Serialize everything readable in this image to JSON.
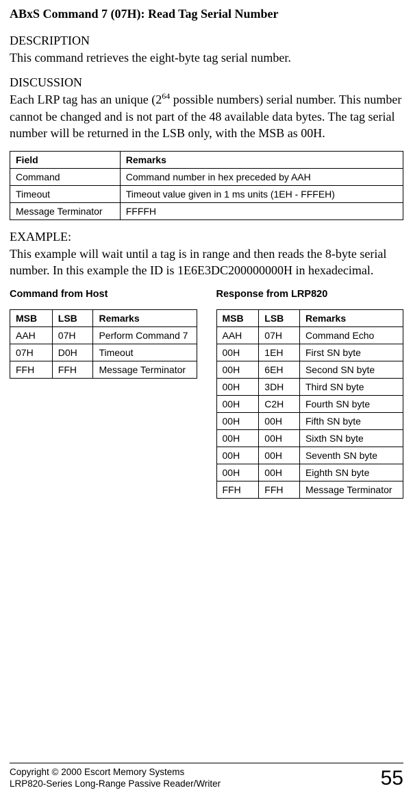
{
  "title": "ABxS Command 7 (07H): Read Tag Serial Number",
  "description": {
    "heading": "DESCRIPTION",
    "text": "This command retrieves the eight-byte tag serial number."
  },
  "discussion": {
    "heading": "DISCUSSION",
    "prefix": "Each LRP tag has an unique (2",
    "exp": "64",
    "suffix": " possible numbers) serial number. This number cannot be changed and is not part of the 48 available data bytes. The tag serial number will be returned in the LSB only, with the MSB as 00H."
  },
  "field_table": {
    "headers": {
      "field": "Field",
      "remarks": "Remarks"
    },
    "rows": [
      {
        "field": "Command",
        "remarks": "Command number in hex preceded by AAH"
      },
      {
        "field": "Timeout",
        "remarks": "Timeout value given in 1 ms units (1EH - FFFEH)"
      },
      {
        "field": "Message Terminator",
        "remarks": "FFFFH"
      }
    ]
  },
  "example": {
    "heading": "EXAMPLE:",
    "text": "This example will wait until a tag is in range and then reads the 8-byte serial number. In this example the ID is 1E6E3DC200000000H in hexadecimal."
  },
  "host_table": {
    "caption": "Command from Host",
    "headers": {
      "msb": "MSB",
      "lsb": "LSB",
      "remarks": "Remarks"
    },
    "rows": [
      {
        "msb": "AAH",
        "lsb": "07H",
        "remarks": "Perform Command 7"
      },
      {
        "msb": "07H",
        "lsb": "D0H",
        "remarks": "Timeout"
      },
      {
        "msb": "FFH",
        "lsb": "FFH",
        "remarks": "Message Terminator"
      }
    ]
  },
  "resp_table": {
    "caption": "Response from LRP820",
    "headers": {
      "msb": "MSB",
      "lsb": "LSB",
      "remarks": "Remarks"
    },
    "rows": [
      {
        "msb": "AAH",
        "lsb": "07H",
        "remarks": "Command Echo"
      },
      {
        "msb": "00H",
        "lsb": "1EH",
        "remarks": "First SN byte"
      },
      {
        "msb": "00H",
        "lsb": "6EH",
        "remarks": "Second SN byte"
      },
      {
        "msb": "00H",
        "lsb": "3DH",
        "remarks": "Third SN byte"
      },
      {
        "msb": "00H",
        "lsb": "C2H",
        "remarks": "Fourth SN byte"
      },
      {
        "msb": "00H",
        "lsb": "00H",
        "remarks": "Fifth SN byte"
      },
      {
        "msb": "00H",
        "lsb": "00H",
        "remarks": "Sixth SN byte"
      },
      {
        "msb": "00H",
        "lsb": "00H",
        "remarks": "Seventh SN byte"
      },
      {
        "msb": "00H",
        "lsb": "00H",
        "remarks": "Eighth SN byte"
      },
      {
        "msb": "FFH",
        "lsb": "FFH",
        "remarks": "Message Terminator"
      }
    ]
  },
  "footer": {
    "line1": "Copyright © 2000 Escort Memory Systems",
    "line2": "LRP820-Series Long-Range Passive Reader/Writer",
    "page": "55"
  }
}
